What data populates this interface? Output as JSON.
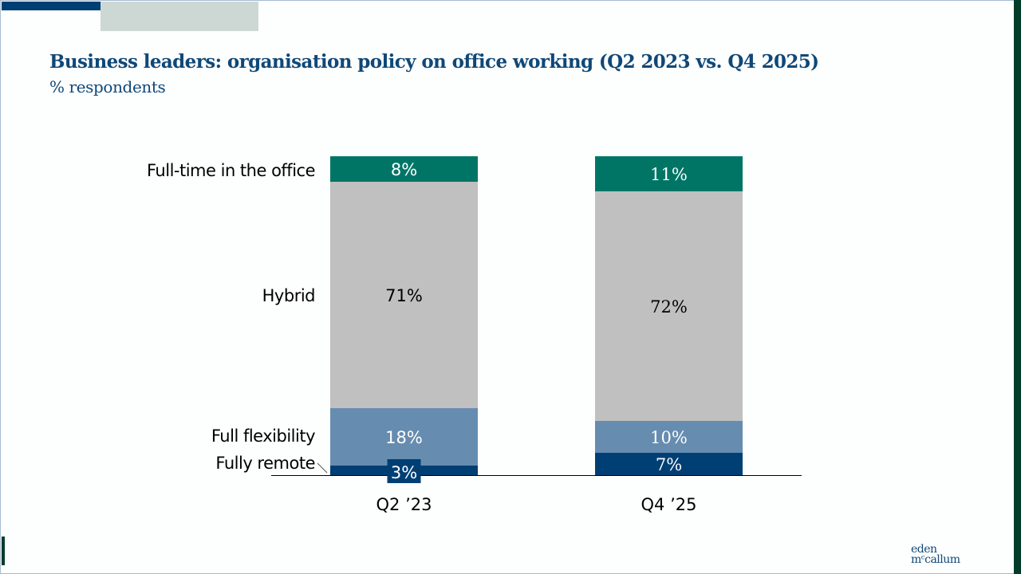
{
  "slide": {
    "title": "Business leaders: organisation policy on office working (Q2 2023 vs. Q4 2025)",
    "subtitle": "% respondents",
    "logo": {
      "line1": "eden",
      "line2": "mᶜcallum"
    }
  },
  "colors": {
    "full_time_office": "#007566",
    "hybrid": "#c0c0c0",
    "full_flexibility": "#668cb0",
    "fully_remote": "#003f74",
    "title": "#0f4877",
    "brand_dark_green": "#033d2a"
  },
  "chart_data": {
    "type": "bar",
    "stacked": true,
    "title": "Business leaders: organisation policy on office working (Q2 2023 vs. Q4 2025)",
    "subtitle": "% respondents",
    "xlabel": "",
    "ylabel": "% respondents",
    "ylim": [
      0,
      100
    ],
    "grid": false,
    "legend": "left (inline category labels)",
    "categories": [
      "Q2 ’23",
      "Q4 ’25"
    ],
    "series": [
      {
        "name": "Fully remote",
        "key": "fully_remote",
        "values": [
          3,
          7
        ],
        "labels": [
          "3%",
          "7%"
        ]
      },
      {
        "name": "Full flexibility",
        "key": "full_flexibility",
        "values": [
          18,
          10
        ],
        "labels": [
          "18%",
          "10%"
        ]
      },
      {
        "name": "Hybrid",
        "key": "hybrid",
        "values": [
          71,
          72
        ],
        "labels": [
          "71%",
          "72%"
        ]
      },
      {
        "name": "Full-time in the office",
        "key": "full_time_office",
        "values": [
          8,
          11
        ],
        "labels": [
          "8%",
          "11%"
        ]
      }
    ]
  }
}
